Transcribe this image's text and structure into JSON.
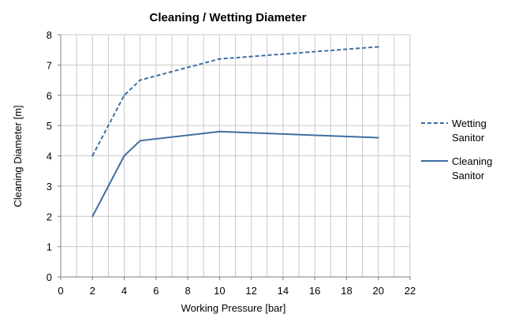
{
  "chart_data": {
    "type": "line",
    "title": "Cleaning / Wetting Diameter",
    "xlabel": "Working Pressure [bar]",
    "ylabel": "Cleaning Diameter [m]",
    "xlim": [
      0,
      22
    ],
    "ylim": [
      0,
      8
    ],
    "x_ticks": [
      "0",
      "2",
      "4",
      "6",
      "8",
      "10",
      "12",
      "14",
      "16",
      "18",
      "20",
      "22"
    ],
    "y_ticks": [
      "0",
      "1",
      "2",
      "3",
      "4",
      "5",
      "6",
      "7",
      "8"
    ],
    "grid": true,
    "legend_position": "right",
    "series": [
      {
        "name_lines": [
          "Wetting",
          "Sanitor"
        ],
        "style": "dashed",
        "color": "#3f6ea0",
        "x": [
          2,
          4,
          5,
          10,
          20
        ],
        "y": [
          4.0,
          6.0,
          6.5,
          7.2,
          7.6
        ]
      },
      {
        "name_lines": [
          "Cleaning",
          "Sanitor"
        ],
        "style": "solid",
        "color": "#3f6ea0",
        "x": [
          2,
          4,
          5,
          10,
          20
        ],
        "y": [
          2.0,
          4.0,
          4.5,
          4.8,
          4.6
        ]
      }
    ]
  }
}
